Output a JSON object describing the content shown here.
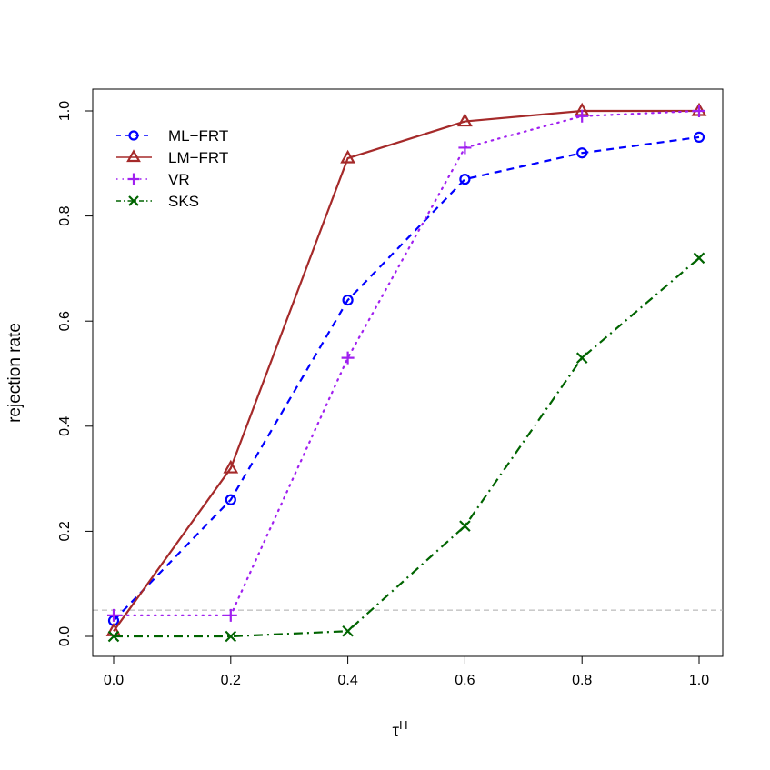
{
  "chart_data": {
    "type": "line",
    "title": "",
    "xlabel": "τ^H",
    "xlabel_main": "τ",
    "xlabel_sup": "H",
    "ylabel": "rejection rate",
    "x": [
      0.0,
      0.2,
      0.4,
      0.6,
      0.8,
      1.0
    ],
    "x_tick_labels": [
      "0.0",
      "0.2",
      "0.4",
      "0.6",
      "0.8",
      "1.0"
    ],
    "y_tick_labels": [
      "0.0",
      "0.2",
      "0.4",
      "0.6",
      "0.8",
      "1.0"
    ],
    "y_ticks": [
      0.0,
      0.2,
      0.4,
      0.6,
      0.8,
      1.0
    ],
    "xlim": [
      0.0,
      1.0
    ],
    "ylim": [
      0.0,
      1.0
    ],
    "grid": false,
    "reference_line": {
      "y": 0.05,
      "color": "#aaaaaa",
      "style": "dashed"
    },
    "legend_position": "top-left",
    "series": [
      {
        "name": "ML−FRT",
        "values": [
          0.03,
          0.26,
          0.64,
          0.87,
          0.92,
          0.95
        ],
        "color": "#0000ff",
        "marker": "circle",
        "dash": "8,6"
      },
      {
        "name": "LM−FRT",
        "values": [
          0.01,
          0.32,
          0.91,
          0.98,
          1.0,
          1.0
        ],
        "color": "#a52a2a",
        "marker": "triangle",
        "dash": ""
      },
      {
        "name": "VR",
        "values": [
          0.04,
          0.04,
          0.53,
          0.93,
          0.99,
          1.0
        ],
        "color": "#a020f0",
        "marker": "plus",
        "dash": "1.5,6"
      },
      {
        "name": "SKS",
        "values": [
          0.0,
          0.0,
          0.01,
          0.21,
          0.53,
          0.72
        ],
        "color": "#006400",
        "marker": "x",
        "dash": "10,5,2,5"
      }
    ]
  }
}
